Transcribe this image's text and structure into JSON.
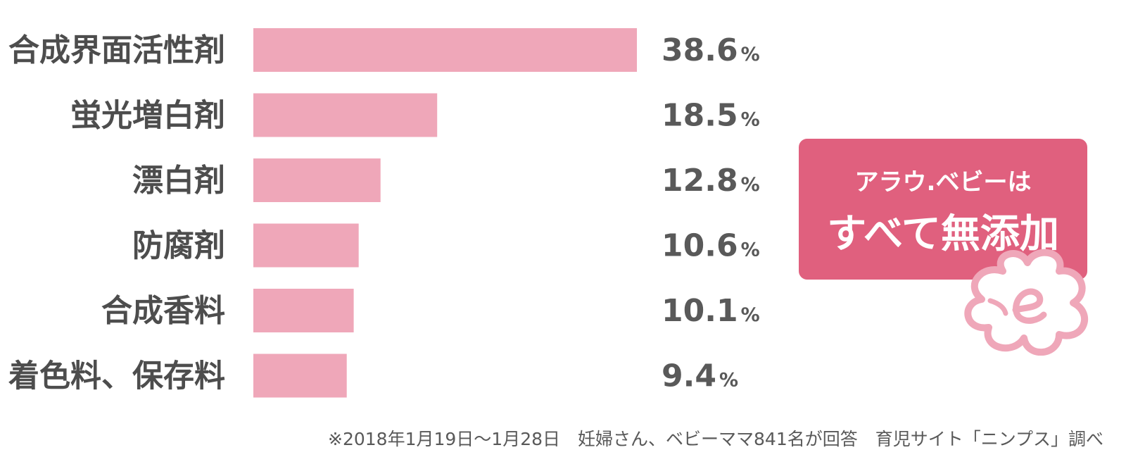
{
  "chart_data": {
    "type": "bar",
    "orientation": "horizontal",
    "categories": [
      "合成界面活性剤",
      "蛍光増白剤",
      "漂白剤",
      "防腐剤",
      "合成香料",
      "着色料、保存料"
    ],
    "values": [
      38.6,
      18.5,
      12.8,
      10.6,
      10.1,
      9.4
    ],
    "value_labels": [
      "38.6",
      "18.5",
      "12.8",
      "10.6",
      "10.1",
      "9.4"
    ],
    "unit": "%",
    "bar_color": "#efa7b9",
    "label_color": "#4d4d4d",
    "grid": false
  },
  "callout": {
    "line1": "アラウ.ベビーは",
    "line2": "すべて無添加",
    "background": "#e0607e",
    "logo_color": "#efa7b9"
  },
  "footnote": "※2018年1月19日〜1月28日　妊婦さん、ベビーママ841名が回答　育児サイト「ニンプス」調べ"
}
